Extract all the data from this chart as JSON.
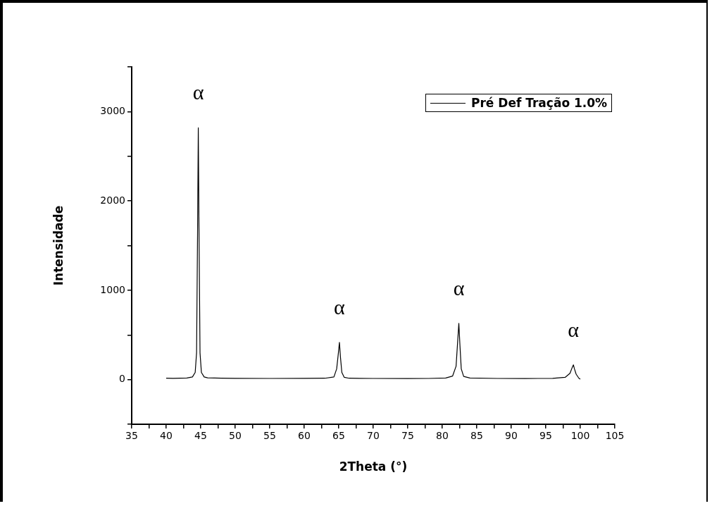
{
  "chart_data": {
    "type": "line",
    "xlabel": "2Theta (°)",
    "ylabel": "Intensidade",
    "legend": "top right",
    "grid": false,
    "marker": "none",
    "line_style": "solid",
    "xlim": [
      35,
      105
    ],
    "ylim": [
      -500,
      3500
    ],
    "xticks": [
      35,
      {
        "value": 37.5,
        "label": null
      },
      40,
      {
        "value": 42.5,
        "label": null
      },
      45,
      {
        "value": 47.5,
        "label": null
      },
      50,
      {
        "value": 52.5,
        "label": null
      },
      55,
      {
        "value": 57.5,
        "label": null
      },
      60,
      {
        "value": 62.5,
        "label": null
      },
      65,
      {
        "value": 67.5,
        "label": null
      },
      70,
      {
        "value": 72.5,
        "label": null
      },
      75,
      {
        "value": 77.5,
        "label": null
      },
      80,
      {
        "value": 82.5,
        "label": null
      },
      85,
      {
        "value": 87.5,
        "label": null
      },
      90,
      {
        "value": 92.5,
        "label": null
      },
      95,
      {
        "value": 97.5,
        "label": null
      },
      100,
      {
        "value": 102.5,
        "label": null
      },
      105
    ],
    "yticks": [
      {
        "value": -500,
        "label": null
      },
      0,
      {
        "value": 500,
        "label": null
      },
      1000,
      {
        "value": 1500,
        "label": null
      },
      2000,
      {
        "value": 2500,
        "label": null
      },
      3000,
      {
        "value": 3500,
        "label": null
      }
    ],
    "annotations": [
      {
        "text": "α",
        "x": 44.65,
        "y": 2819
      },
      {
        "text": "α",
        "x": 65.1,
        "y": 417
      },
      {
        "text": "α",
        "x": 82.4,
        "y": 630
      },
      {
        "text": "α",
        "x": 99,
        "y": 165
      }
    ],
    "series": [
      {
        "name": "Pré Def Tração 1.0%",
        "color": "#000000",
        "x": [
          40,
          41,
          42,
          43,
          43.8,
          44.2,
          44.4,
          44.55,
          44.65,
          44.75,
          44.9,
          45.1,
          45.5,
          46,
          48,
          50,
          55,
          60,
          63,
          64.3,
          64.7,
          64.95,
          65.1,
          65.25,
          65.45,
          65.8,
          66.5,
          70,
          75,
          78,
          80.5,
          81.5,
          82,
          82.25,
          82.4,
          82.55,
          82.75,
          83.1,
          84,
          88,
          92,
          96,
          97.8,
          98.5,
          98.85,
          99,
          99.15,
          99.4,
          99.8,
          100
        ],
        "values": [
          15,
          14,
          16,
          18,
          30,
          80,
          300,
          1700,
          2819,
          1700,
          300,
          80,
          30,
          20,
          16,
          14,
          13,
          14,
          15,
          30,
          120,
          300,
          417,
          250,
          80,
          25,
          15,
          13,
          12,
          13,
          18,
          40,
          150,
          450,
          630,
          400,
          120,
          35,
          18,
          13,
          12,
          14,
          25,
          70,
          140,
          165,
          120,
          60,
          15,
          5
        ]
      }
    ]
  }
}
